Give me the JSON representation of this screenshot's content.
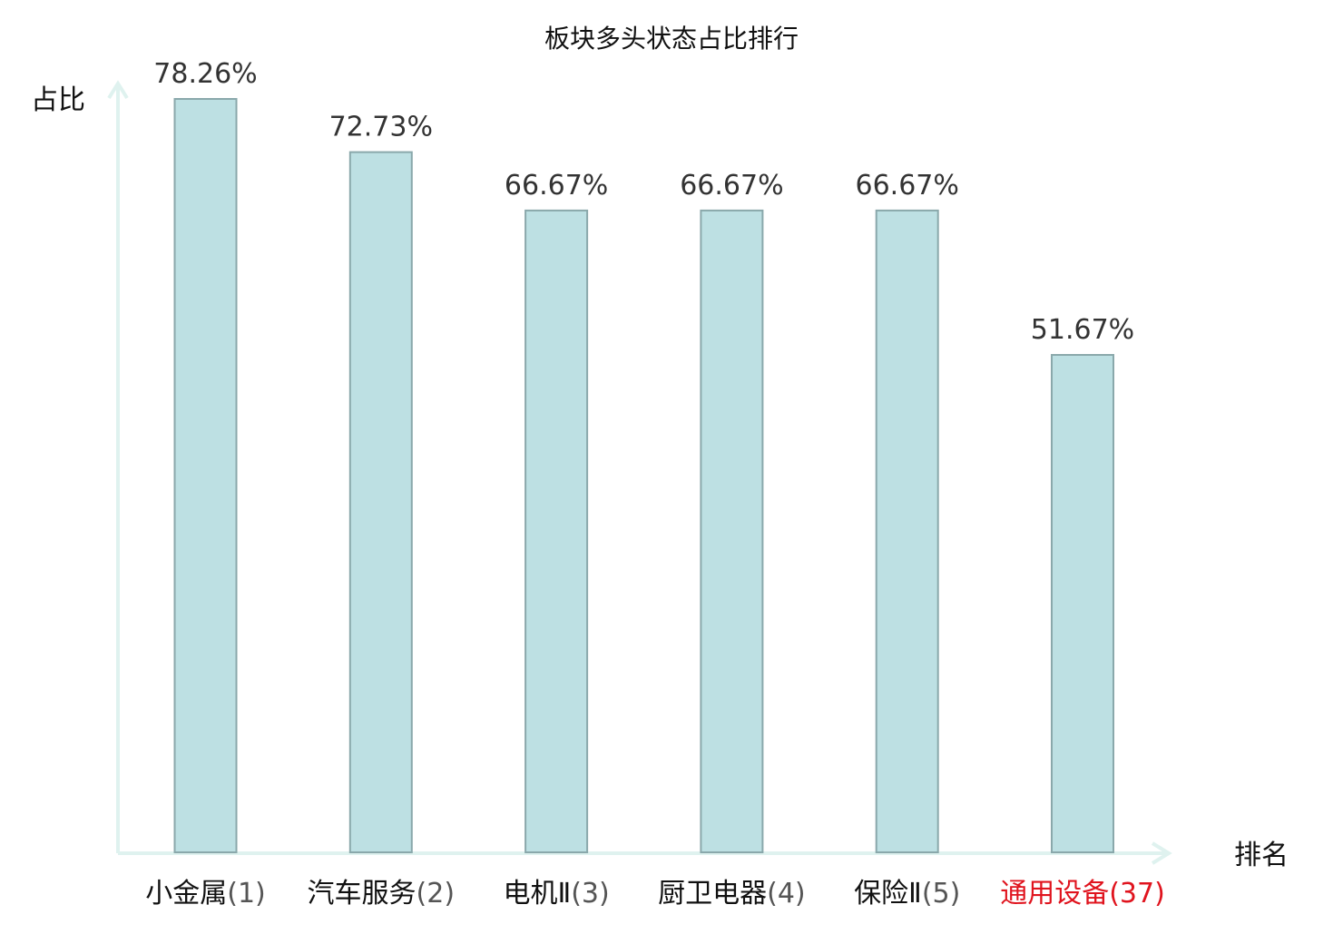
{
  "chart_data": {
    "type": "bar",
    "title": "板块多头状态占比排行",
    "xlabel": "排名",
    "ylabel": "占比",
    "categories": [
      {
        "name": "小金属",
        "rank": "(1)",
        "highlight": false
      },
      {
        "name": "汽车服务",
        "rank": "(2)",
        "highlight": false
      },
      {
        "name": "电机Ⅱ",
        "rank": "(3)",
        "highlight": false
      },
      {
        "name": "厨卫电器",
        "rank": "(4)",
        "highlight": false
      },
      {
        "name": "保险Ⅱ",
        "rank": "(5)",
        "highlight": false
      },
      {
        "name": "通用设备",
        "rank": "(37)",
        "highlight": true
      }
    ],
    "values": [
      78.26,
      72.73,
      66.67,
      66.67,
      66.67,
      51.67
    ],
    "value_labels": [
      "78.26%",
      "72.73%",
      "66.67%",
      "66.67%",
      "66.67%",
      "51.67%"
    ],
    "ylim": [
      0,
      78.26
    ],
    "grid": false,
    "legend": "none",
    "colors": {
      "bar_fill": "#bde0e3",
      "bar_stroke": "#8aa8ab",
      "axis": "#dff2ef",
      "label_text": "#111111",
      "rank_text": "#555555",
      "highlight_text": "#e0141e"
    }
  }
}
